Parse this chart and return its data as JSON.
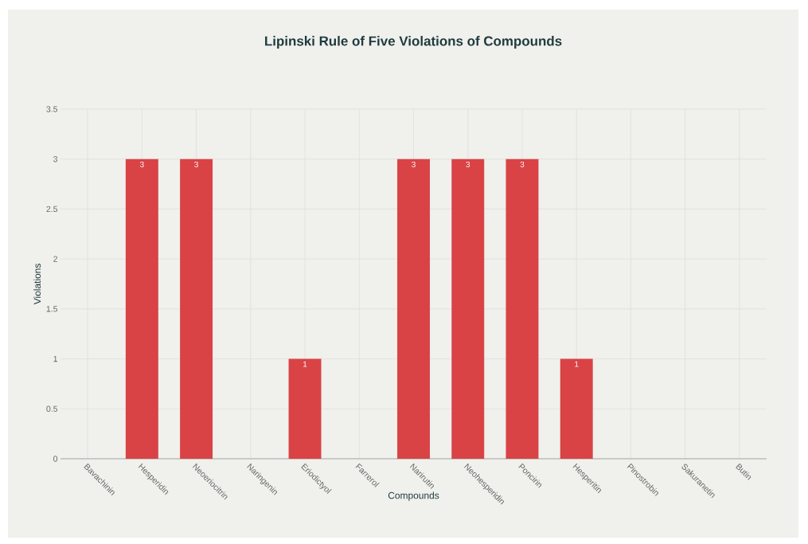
{
  "chart_data": {
    "type": "bar",
    "title": "Lipinski Rule of Five Violations of Compounds",
    "xlabel": "Compounds",
    "ylabel": "Violations",
    "categories": [
      "Bavachinin",
      "Hesperidin",
      "Neoeriocitrin",
      "Naringenin",
      "Eriodictyol",
      "Farrerol",
      "Narirutin",
      "Neohesperidin",
      "Poncirin",
      "Hesperitin",
      "Pinostrobin",
      "Sakuranetin",
      "Butin"
    ],
    "values": [
      0,
      3,
      3,
      0,
      1,
      0,
      3,
      3,
      3,
      1,
      0,
      0,
      0
    ],
    "value_labels": [
      null,
      "3",
      "3",
      null,
      "1",
      null,
      "3",
      "3",
      "3",
      "1",
      null,
      null,
      null
    ],
    "color": "#d94345",
    "ylim": [
      0,
      3.5
    ],
    "yticks": [
      0,
      0.5,
      1,
      1.5,
      2,
      2.5,
      3,
      3.5
    ],
    "grid": true
  }
}
